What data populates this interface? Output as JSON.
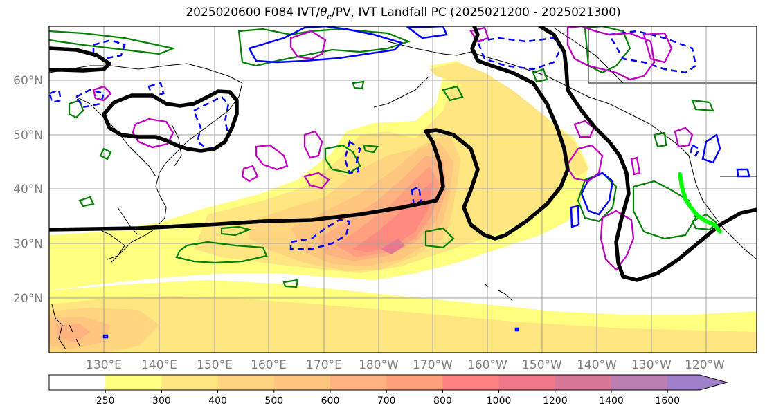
{
  "title": {
    "prefix": "2025020600 F084 IVT/",
    "theta": "θ",
    "theta_sub": "e",
    "suffix": "/PV, IVT Landfall PC (2025021200 - 2025021300)"
  },
  "lat_labels": [
    "60°N",
    "50°N",
    "40°N",
    "30°N",
    "20°N"
  ],
  "lon_labels": [
    "130°E",
    "140°E",
    "150°E",
    "160°E",
    "170°E",
    "180°W",
    "170°W",
    "160°W",
    "150°W",
    "140°W",
    "130°W",
    "120°W"
  ],
  "colorbar": {
    "levels": [
      "250",
      "300",
      "400",
      "500",
      "600",
      "700",
      "800",
      "1000",
      "1200",
      "1400",
      "1600"
    ],
    "colors": [
      "#ffffff",
      "#ffff80",
      "#ffe680",
      "#ffd580",
      "#ffc680",
      "#ffb380",
      "#ffa07a",
      "#ff8080",
      "#f07888",
      "#d87898",
      "#b87fb0",
      "#a080c8"
    ]
  },
  "legend_colors": {
    "ivt_landfall": "#00ff00",
    "theta_e": "#000000",
    "pv_green": "#008000",
    "pv_blue": "#0000ff",
    "pv_magenta": "#c000c0"
  }
}
